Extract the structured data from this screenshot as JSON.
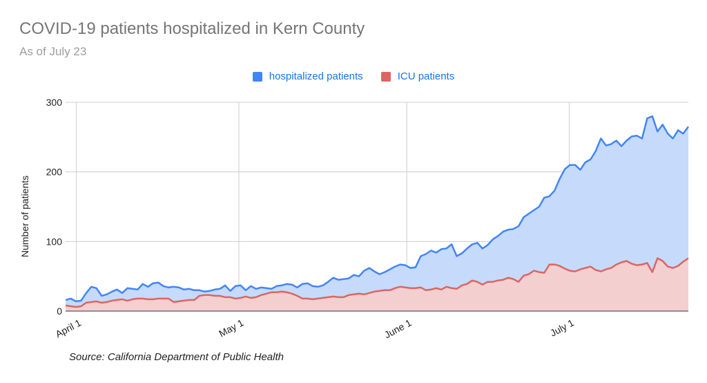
{
  "title": "COVID-19 patients hospitalized in Kern County",
  "subtitle": "As of July 23",
  "legend": [
    {
      "label": "hospitalized patients",
      "color": "#4285f4"
    },
    {
      "label": "ICU patients",
      "color": "#db6562"
    }
  ],
  "source": "Source: California Department of Public Health",
  "chart_data": {
    "type": "area",
    "ylabel": "Number of patients",
    "ylim": [
      0,
      300
    ],
    "yticks": [
      "0",
      "100",
      "200",
      "300"
    ],
    "xticks": [
      "April 1",
      "May 1",
      "June 1",
      "July 1"
    ],
    "x_start": "2020-03-30",
    "x_end": "2020-07-23",
    "grid": true,
    "legend_position": "top",
    "series": [
      {
        "name": "hospitalized patients",
        "color": "#4285f4",
        "values": [
          16,
          18,
          14,
          15,
          26,
          35,
          33,
          22,
          24,
          28,
          31,
          26,
          33,
          32,
          31,
          39,
          35,
          40,
          41,
          36,
          34,
          35,
          34,
          31,
          32,
          30,
          30,
          28,
          29,
          31,
          32,
          37,
          29,
          36,
          37,
          30,
          36,
          32,
          34,
          33,
          32,
          36,
          37,
          39,
          38,
          34,
          39,
          40,
          36,
          35,
          37,
          42,
          48,
          45,
          46,
          47,
          52,
          50,
          58,
          62,
          57,
          53,
          56,
          60,
          64,
          67,
          66,
          62,
          63,
          79,
          82,
          87,
          84,
          89,
          90,
          96,
          79,
          83,
          90,
          96,
          98,
          90,
          95,
          103,
          108,
          114,
          117,
          118,
          122,
          135,
          140,
          145,
          150,
          163,
          165,
          173,
          190,
          204,
          210,
          210,
          203,
          214,
          218,
          230,
          248,
          238,
          240,
          245,
          237,
          245,
          251,
          252,
          248,
          277,
          280,
          258,
          268,
          255,
          248,
          260,
          255,
          265
        ]
      },
      {
        "name": "ICU patients",
        "color": "#db6562",
        "values": [
          8,
          7,
          6,
          7,
          12,
          13,
          14,
          12,
          13,
          15,
          16,
          17,
          15,
          17,
          18,
          18,
          17,
          17,
          18,
          18,
          18,
          13,
          14,
          15,
          16,
          16,
          22,
          23,
          23,
          22,
          22,
          20,
          20,
          18,
          19,
          21,
          19,
          20,
          23,
          25,
          27,
          27,
          28,
          27,
          25,
          22,
          18,
          18,
          17,
          18,
          19,
          20,
          21,
          20,
          20,
          23,
          24,
          25,
          24,
          26,
          28,
          29,
          30,
          30,
          33,
          35,
          34,
          33,
          33,
          34,
          30,
          31,
          33,
          31,
          35,
          33,
          32,
          37,
          39,
          44,
          42,
          38,
          42,
          42,
          44,
          45,
          48,
          46,
          42,
          51,
          53,
          58,
          56,
          55,
          67,
          67,
          65,
          61,
          58,
          57,
          60,
          62,
          64,
          59,
          57,
          60,
          62,
          67,
          70,
          72,
          68,
          66,
          67,
          69,
          56,
          76,
          72,
          64,
          62,
          65,
          71,
          76
        ]
      }
    ]
  }
}
